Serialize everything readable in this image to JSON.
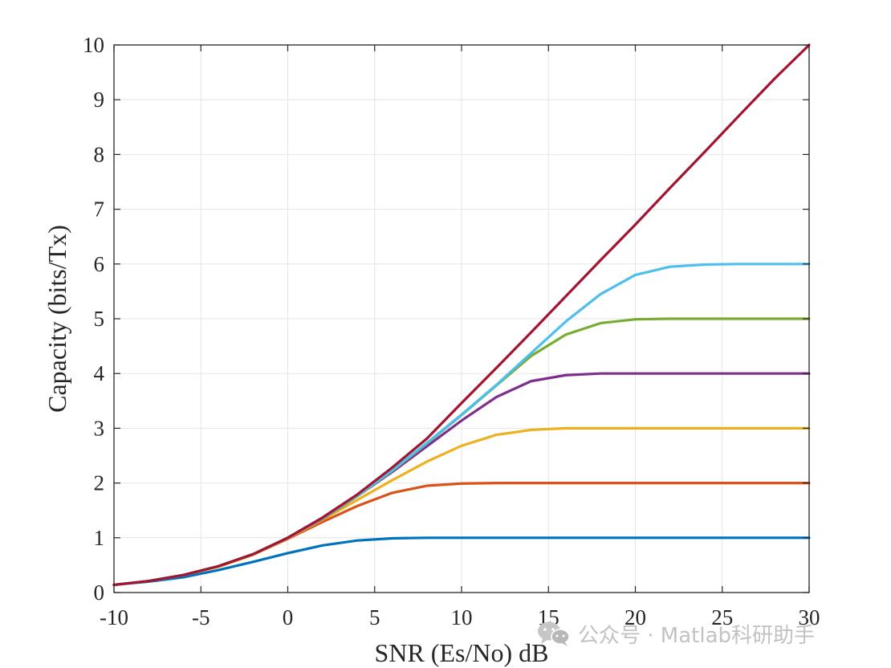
{
  "chart_data": {
    "type": "line",
    "title": "",
    "xlabel": "SNR (Es/No) dB",
    "ylabel": "Capacity (bits/Tx)",
    "xlim": [
      -10,
      30
    ],
    "ylim": [
      0,
      10
    ],
    "xticks": [
      -10,
      -5,
      0,
      5,
      10,
      15,
      20,
      25,
      30
    ],
    "yticks": [
      0,
      1,
      2,
      3,
      4,
      5,
      6,
      7,
      8,
      9,
      10
    ],
    "grid": true,
    "legend": "none",
    "x": [
      -10,
      -8,
      -6,
      -4,
      -2,
      0,
      2,
      4,
      6,
      8,
      10,
      12,
      14,
      16,
      18,
      20,
      22,
      24,
      26,
      28,
      30
    ],
    "series": [
      {
        "color": "#0072BD",
        "values": [
          0.14,
          0.2,
          0.28,
          0.41,
          0.56,
          0.72,
          0.86,
          0.95,
          0.99,
          1.0,
          1.0,
          1.0,
          1.0,
          1.0,
          1.0,
          1.0,
          1.0,
          1.0,
          1.0,
          1.0,
          1.0
        ]
      },
      {
        "color": "#D95319",
        "values": [
          0.14,
          0.21,
          0.32,
          0.47,
          0.69,
          0.98,
          1.29,
          1.58,
          1.82,
          1.95,
          1.99,
          2.0,
          2.0,
          2.0,
          2.0,
          2.0,
          2.0,
          2.0,
          2.0,
          2.0,
          2.0
        ]
      },
      {
        "color": "#EDB120",
        "values": [
          0.14,
          0.21,
          0.32,
          0.47,
          0.69,
          0.99,
          1.33,
          1.69,
          2.05,
          2.39,
          2.68,
          2.88,
          2.97,
          3.0,
          3.0,
          3.0,
          3.0,
          3.0,
          3.0,
          3.0,
          3.0
        ]
      },
      {
        "color": "#7E2F8E",
        "values": [
          0.14,
          0.21,
          0.32,
          0.48,
          0.7,
          1.0,
          1.35,
          1.76,
          2.2,
          2.67,
          3.14,
          3.57,
          3.86,
          3.97,
          4.0,
          4.0,
          4.0,
          4.0,
          4.0,
          4.0,
          4.0
        ]
      },
      {
        "color": "#77AC30",
        "values": [
          0.14,
          0.21,
          0.32,
          0.48,
          0.7,
          1.0,
          1.36,
          1.76,
          2.22,
          2.72,
          3.24,
          3.78,
          4.32,
          4.71,
          4.92,
          4.99,
          5.0,
          5.0,
          5.0,
          5.0,
          5.0
        ]
      },
      {
        "color": "#4DBEEE",
        "values": [
          0.14,
          0.21,
          0.32,
          0.48,
          0.7,
          1.0,
          1.36,
          1.77,
          2.23,
          2.73,
          3.25,
          3.79,
          4.37,
          4.95,
          5.45,
          5.8,
          5.95,
          5.99,
          6.0,
          6.0,
          6.0
        ]
      },
      {
        "color": "#A2142F",
        "values": [
          0.14,
          0.21,
          0.32,
          0.48,
          0.7,
          1.0,
          1.37,
          1.79,
          2.28,
          2.81,
          3.46,
          4.1,
          4.75,
          5.41,
          6.07,
          6.72,
          7.39,
          8.05,
          8.72,
          9.38,
          10.0
        ]
      }
    ]
  },
  "watermark": {
    "icon": "wechat-icon",
    "text": "公众号 · Matlab科研助手"
  }
}
